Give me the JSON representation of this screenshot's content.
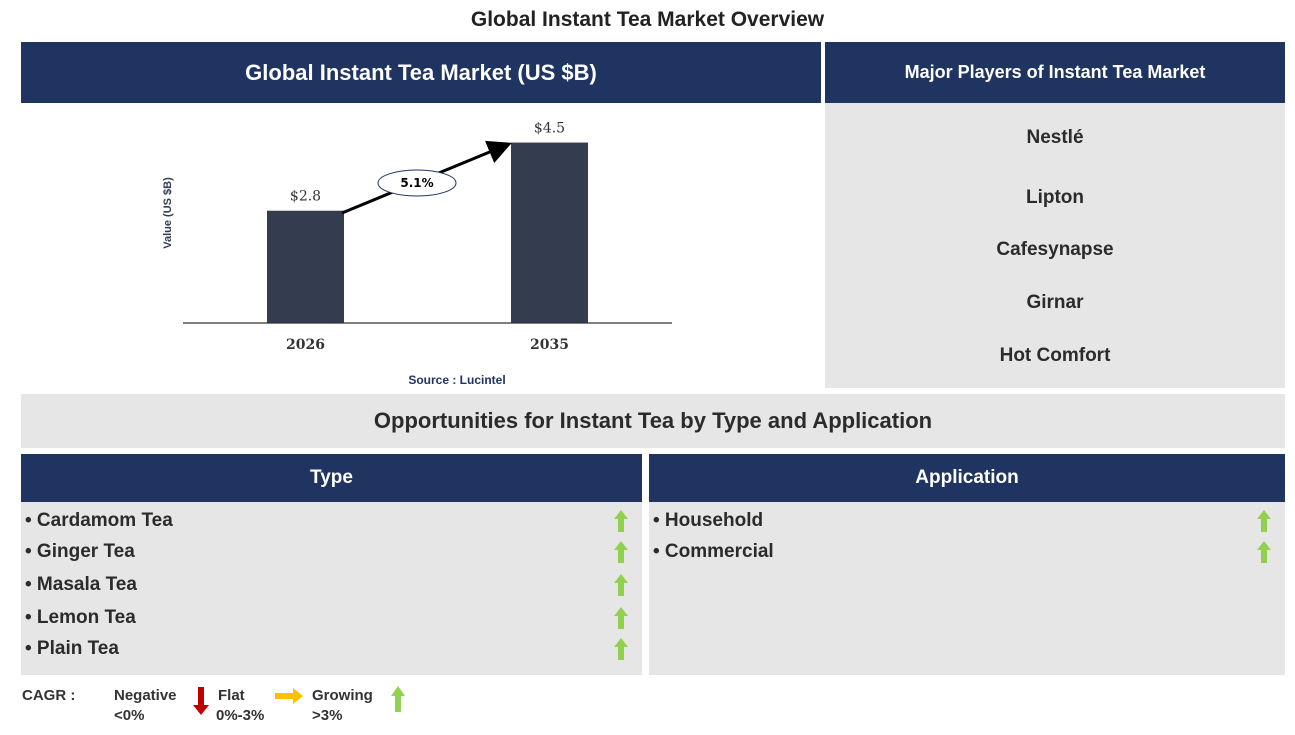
{
  "title": "Global Instant Tea Market Overview",
  "chart_panel": {
    "header": "Global Instant Tea Market (US $B)",
    "source": "Source : Lucintel"
  },
  "chart_data": {
    "type": "bar",
    "title": "Global Instant Tea Market (US $B)",
    "categories": [
      "2026",
      "2035"
    ],
    "values": [
      2.8,
      4.5
    ],
    "data_labels": [
      "$2.8",
      "$4.5"
    ],
    "ylabel": "Value (US $B)",
    "xlabel": "",
    "cagr_label": "5.1%",
    "bar_color": "#333d4f",
    "grid": false
  },
  "players": {
    "header": "Major Players of Instant Tea Market",
    "items": [
      "Nestlé",
      "Lipton",
      "Cafesynapse",
      "Girnar",
      "Hot Comfort"
    ]
  },
  "opportunities": {
    "title": "Opportunities for Instant Tea by Type and Application",
    "type": {
      "header": "Type",
      "items": [
        {
          "label": "• Cardamom Tea",
          "trend": "growing"
        },
        {
          "label": "• Ginger Tea",
          "trend": "growing"
        },
        {
          "label": "• Masala Tea",
          "trend": "growing"
        },
        {
          "label": "• Lemon Tea",
          "trend": "growing"
        },
        {
          "label": "• Plain Tea",
          "trend": "growing"
        }
      ]
    },
    "application": {
      "header": "Application",
      "items": [
        {
          "label": "• Household",
          "trend": "growing"
        },
        {
          "label": "• Commercial",
          "trend": "growing"
        }
      ]
    }
  },
  "legend": {
    "label": "CAGR :",
    "negative": "Negative",
    "negative_range": "<0%",
    "flat": "Flat",
    "flat_range": "0%-3%",
    "growing": "Growing",
    "growing_range": ">3%",
    "colors": {
      "negative": "#c00000",
      "flat": "#ffc000",
      "growing": "#92d050"
    }
  }
}
